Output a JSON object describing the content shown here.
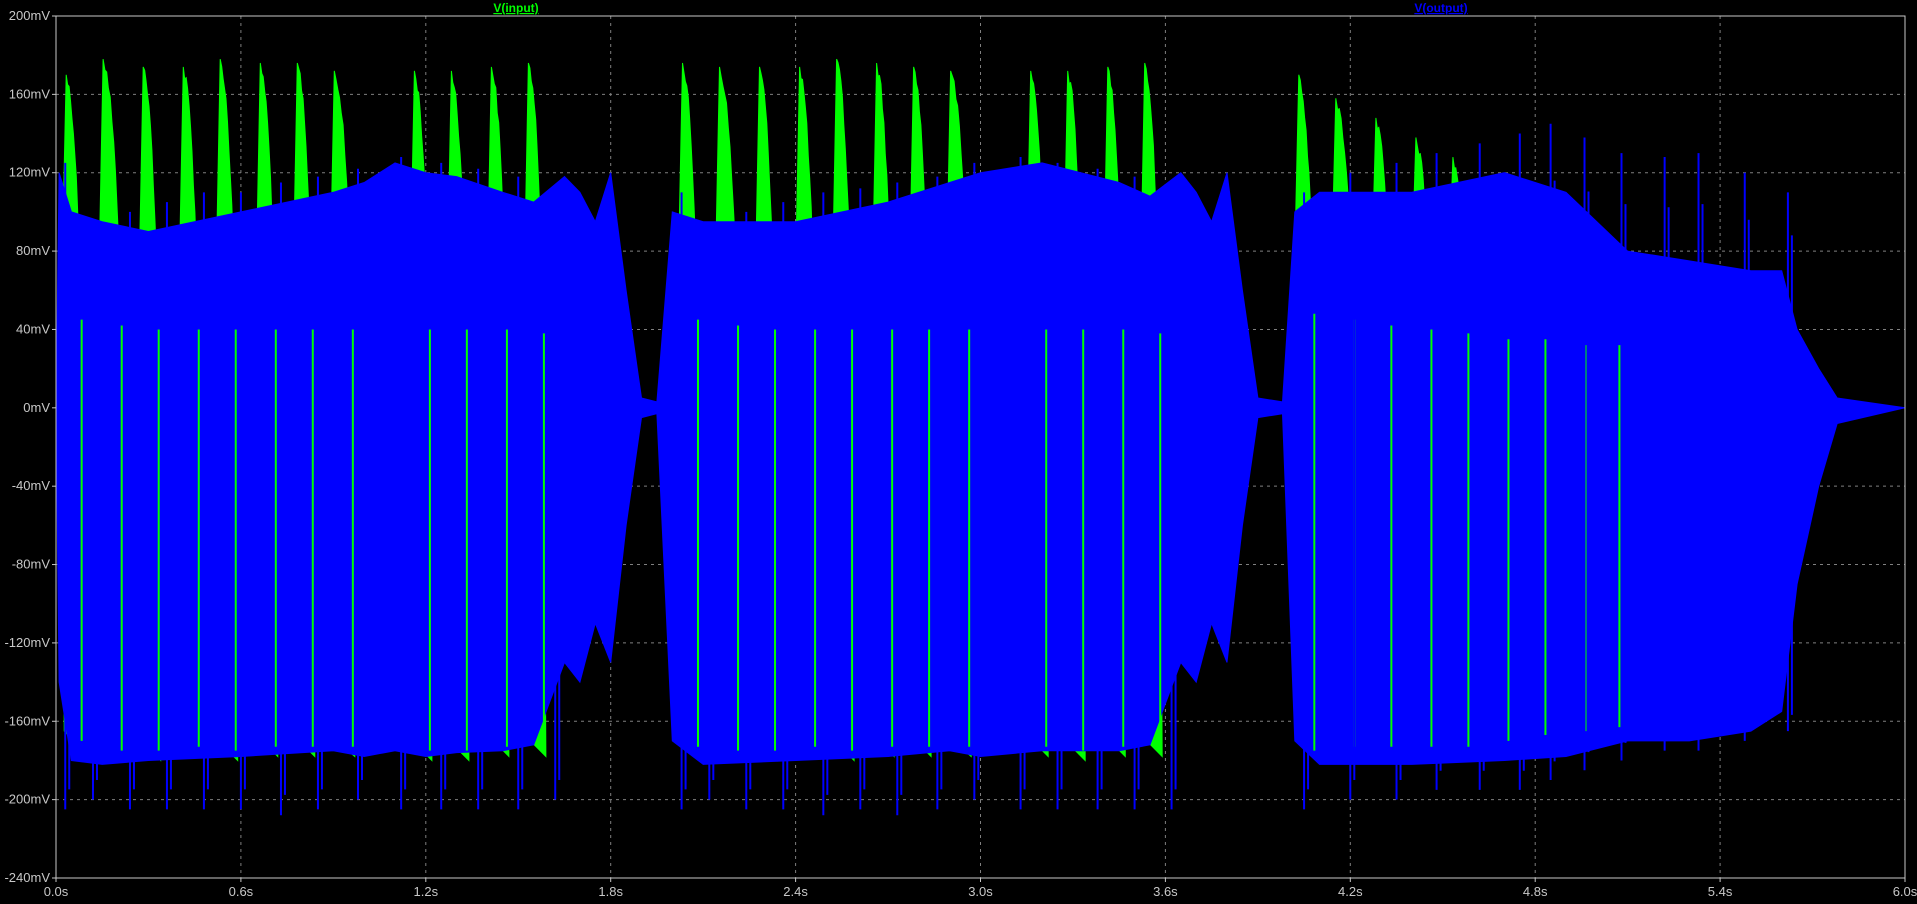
{
  "colors": {
    "background": "#000000",
    "grid": "#7f7f7f",
    "frame": "#c8c8c8",
    "tick_text": "#c8c8c8",
    "input_trace": "#00ff00",
    "output_trace": "#0000ff"
  },
  "chart_data": {
    "type": "line",
    "title": "",
    "xlabel": "",
    "ylabel": "",
    "xlim": [
      0.0,
      6.0
    ],
    "ylim": [
      -240,
      200
    ],
    "x_unit": "s",
    "y_unit": "mV",
    "grid": true,
    "legend": "top, above plot",
    "x_ticks": [
      "0.0s",
      "0.6s",
      "1.2s",
      "1.8s",
      "2.4s",
      "3.0s",
      "3.6s",
      "4.2s",
      "4.8s",
      "5.4s",
      "6.0s"
    ],
    "x_tick_values": [
      0.0,
      0.6,
      1.2,
      1.8,
      2.4,
      3.0,
      3.6,
      4.2,
      4.8,
      5.4,
      6.0
    ],
    "y_ticks": [
      "200mV",
      "160mV",
      "120mV",
      "80mV",
      "40mV",
      "0mV",
      "-40mV",
      "-80mV",
      "-120mV",
      "-160mV",
      "-200mV",
      "-240mV"
    ],
    "y_tick_values": [
      200,
      160,
      120,
      80,
      40,
      0,
      -40,
      -80,
      -120,
      -160,
      -200,
      -240
    ],
    "series": [
      {
        "name": "V(input)",
        "color": "#00ff00",
        "description_envelope": "burst envelope (time s, upper mV, lower mV)",
        "bursts": [
          {
            "t": [
              0.02,
              0.08
            ],
            "peak": 170,
            "floor": 55,
            "min": -175
          },
          {
            "t": [
              0.14,
              0.21
            ],
            "peak": 178,
            "floor": 52,
            "min": -180
          },
          {
            "t": [
              0.27,
              0.33
            ],
            "peak": 174,
            "floor": 50,
            "min": -180
          },
          {
            "t": [
              0.4,
              0.46
            ],
            "peak": 174,
            "floor": 50,
            "min": -178
          },
          {
            "t": [
              0.52,
              0.58
            ],
            "peak": 178,
            "floor": 50,
            "min": -180
          },
          {
            "t": [
              0.65,
              0.71
            ],
            "peak": 176,
            "floor": 50,
            "min": -178
          },
          {
            "t": [
              0.77,
              0.83
            ],
            "peak": 176,
            "floor": 50,
            "min": -178
          },
          {
            "t": [
              0.89,
              0.96
            ],
            "peak": 172,
            "floor": 50,
            "min": -178
          },
          {
            "t": [
              1.15,
              1.21
            ],
            "peak": 172,
            "floor": 50,
            "min": -180
          },
          {
            "t": [
              1.27,
              1.33
            ],
            "peak": 172,
            "floor": 50,
            "min": -180
          },
          {
            "t": [
              1.4,
              1.46
            ],
            "peak": 174,
            "floor": 50,
            "min": -178
          },
          {
            "t": [
              1.52,
              1.58
            ],
            "peak": 176,
            "floor": 48,
            "min": -178
          },
          {
            "t": [
              2.02,
              2.08
            ],
            "peak": 176,
            "floor": 55,
            "min": -178
          },
          {
            "t": [
              2.14,
              2.21
            ],
            "peak": 174,
            "floor": 52,
            "min": -180
          },
          {
            "t": [
              2.27,
              2.33
            ],
            "peak": 174,
            "floor": 50,
            "min": -180
          },
          {
            "t": [
              2.4,
              2.46
            ],
            "peak": 174,
            "floor": 50,
            "min": -178
          },
          {
            "t": [
              2.52,
              2.58
            ],
            "peak": 178,
            "floor": 50,
            "min": -180
          },
          {
            "t": [
              2.65,
              2.71
            ],
            "peak": 176,
            "floor": 50,
            "min": -178
          },
          {
            "t": [
              2.77,
              2.83
            ],
            "peak": 174,
            "floor": 50,
            "min": -178
          },
          {
            "t": [
              2.89,
              2.96
            ],
            "peak": 172,
            "floor": 50,
            "min": -178
          },
          {
            "t": [
              3.15,
              3.21
            ],
            "peak": 172,
            "floor": 50,
            "min": -178
          },
          {
            "t": [
              3.27,
              3.33
            ],
            "peak": 172,
            "floor": 50,
            "min": -180
          },
          {
            "t": [
              3.4,
              3.46
            ],
            "peak": 174,
            "floor": 50,
            "min": -178
          },
          {
            "t": [
              3.52,
              3.58
            ],
            "peak": 176,
            "floor": 48,
            "min": -178
          },
          {
            "t": [
              4.02,
              4.08
            ],
            "peak": 170,
            "floor": 58,
            "min": -180
          },
          {
            "t": [
              4.14,
              4.21
            ],
            "peak": 158,
            "floor": 55,
            "min": -178
          },
          {
            "t": [
              4.27,
              4.33
            ],
            "peak": 148,
            "floor": 52,
            "min": -178
          },
          {
            "t": [
              4.4,
              4.46
            ],
            "peak": 138,
            "floor": 50,
            "min": -178
          },
          {
            "t": [
              4.52,
              4.58
            ],
            "peak": 128,
            "floor": 48,
            "min": -178
          },
          {
            "t": [
              4.65,
              4.71
            ],
            "peak": 118,
            "floor": 45,
            "min": -175
          },
          {
            "t": [
              4.77,
              4.83
            ],
            "peak": 110,
            "floor": 45,
            "min": -172
          },
          {
            "t": [
              4.89,
              4.96
            ],
            "peak": 100,
            "floor": 42,
            "min": -170
          },
          {
            "t": [
              5.01,
              5.07
            ],
            "peak": 88,
            "floor": 42,
            "min": -168
          }
        ]
      },
      {
        "name": "V(output)",
        "color": "#0000ff",
        "description_envelope": "filled envelope (time s, upper mV, lower mV)",
        "envelope": [
          [
            0.0,
            0,
            0
          ],
          [
            0.01,
            120,
            -140
          ],
          [
            0.05,
            100,
            -180
          ],
          [
            0.15,
            95,
            -182
          ],
          [
            0.3,
            90,
            -180
          ],
          [
            0.6,
            100,
            -178
          ],
          [
            0.9,
            110,
            -175
          ],
          [
            1.0,
            115,
            -178
          ],
          [
            1.1,
            125,
            -175
          ],
          [
            1.2,
            120,
            -178
          ],
          [
            1.3,
            118,
            -176
          ],
          [
            1.45,
            110,
            -175
          ],
          [
            1.55,
            105,
            -172
          ],
          [
            1.65,
            118,
            -130
          ],
          [
            1.7,
            110,
            -140
          ],
          [
            1.75,
            95,
            -110
          ],
          [
            1.8,
            120,
            -130
          ],
          [
            1.85,
            60,
            -60
          ],
          [
            1.9,
            5,
            -5
          ],
          [
            1.95,
            3,
            -3
          ],
          [
            2.0,
            100,
            -170
          ],
          [
            2.1,
            95,
            -182
          ],
          [
            2.4,
            95,
            -180
          ],
          [
            2.7,
            105,
            -178
          ],
          [
            2.9,
            115,
            -175
          ],
          [
            3.0,
            120,
            -178
          ],
          [
            3.2,
            125,
            -175
          ],
          [
            3.45,
            115,
            -175
          ],
          [
            3.55,
            108,
            -172
          ],
          [
            3.65,
            120,
            -130
          ],
          [
            3.7,
            110,
            -140
          ],
          [
            3.75,
            95,
            -110
          ],
          [
            3.8,
            120,
            -130
          ],
          [
            3.85,
            60,
            -60
          ],
          [
            3.9,
            5,
            -5
          ],
          [
            3.98,
            3,
            -3
          ],
          [
            4.02,
            100,
            -170
          ],
          [
            4.1,
            110,
            -182
          ],
          [
            4.4,
            110,
            -182
          ],
          [
            4.7,
            120,
            -180
          ],
          [
            4.9,
            110,
            -178
          ],
          [
            5.1,
            80,
            -170
          ],
          [
            5.3,
            75,
            -170
          ],
          [
            5.5,
            70,
            -165
          ],
          [
            5.6,
            70,
            -155
          ],
          [
            5.65,
            40,
            -90
          ],
          [
            5.72,
            20,
            -40
          ],
          [
            5.78,
            5,
            -8
          ],
          [
            6.0,
            0,
            0
          ]
        ],
        "spikes": [
          [
            0.03,
            125,
            -205
          ],
          [
            0.12,
            95,
            -200
          ],
          [
            0.24,
            100,
            -205
          ],
          [
            0.36,
            105,
            -205
          ],
          [
            0.48,
            110,
            -205
          ],
          [
            0.6,
            110,
            -205
          ],
          [
            0.73,
            115,
            -208
          ],
          [
            0.85,
            118,
            -205
          ],
          [
            0.98,
            122,
            -200
          ],
          [
            1.12,
            128,
            -205
          ],
          [
            1.25,
            125,
            -205
          ],
          [
            1.37,
            122,
            -205
          ],
          [
            1.5,
            118,
            -205
          ],
          [
            1.62,
            112,
            -200
          ],
          [
            2.03,
            110,
            -205
          ],
          [
            2.12,
            95,
            -200
          ],
          [
            2.24,
            100,
            -205
          ],
          [
            2.36,
            105,
            -205
          ],
          [
            2.49,
            110,
            -208
          ],
          [
            2.61,
            112,
            -205
          ],
          [
            2.73,
            115,
            -208
          ],
          [
            2.86,
            118,
            -205
          ],
          [
            2.98,
            125,
            -200
          ],
          [
            3.13,
            128,
            -205
          ],
          [
            3.25,
            125,
            -205
          ],
          [
            3.38,
            122,
            -205
          ],
          [
            3.5,
            118,
            -205
          ],
          [
            3.62,
            115,
            -205
          ],
          [
            4.05,
            110,
            -205
          ],
          [
            4.2,
            120,
            -200
          ],
          [
            4.35,
            125,
            -200
          ],
          [
            4.48,
            130,
            -195
          ],
          [
            4.62,
            135,
            -195
          ],
          [
            4.75,
            140,
            -195
          ],
          [
            4.85,
            145,
            -190
          ],
          [
            4.96,
            138,
            -185
          ],
          [
            5.08,
            130,
            -180
          ],
          [
            5.22,
            128,
            -175
          ],
          [
            5.33,
            130,
            -175
          ],
          [
            5.48,
            120,
            -170
          ],
          [
            5.62,
            110,
            -165
          ]
        ]
      }
    ]
  }
}
